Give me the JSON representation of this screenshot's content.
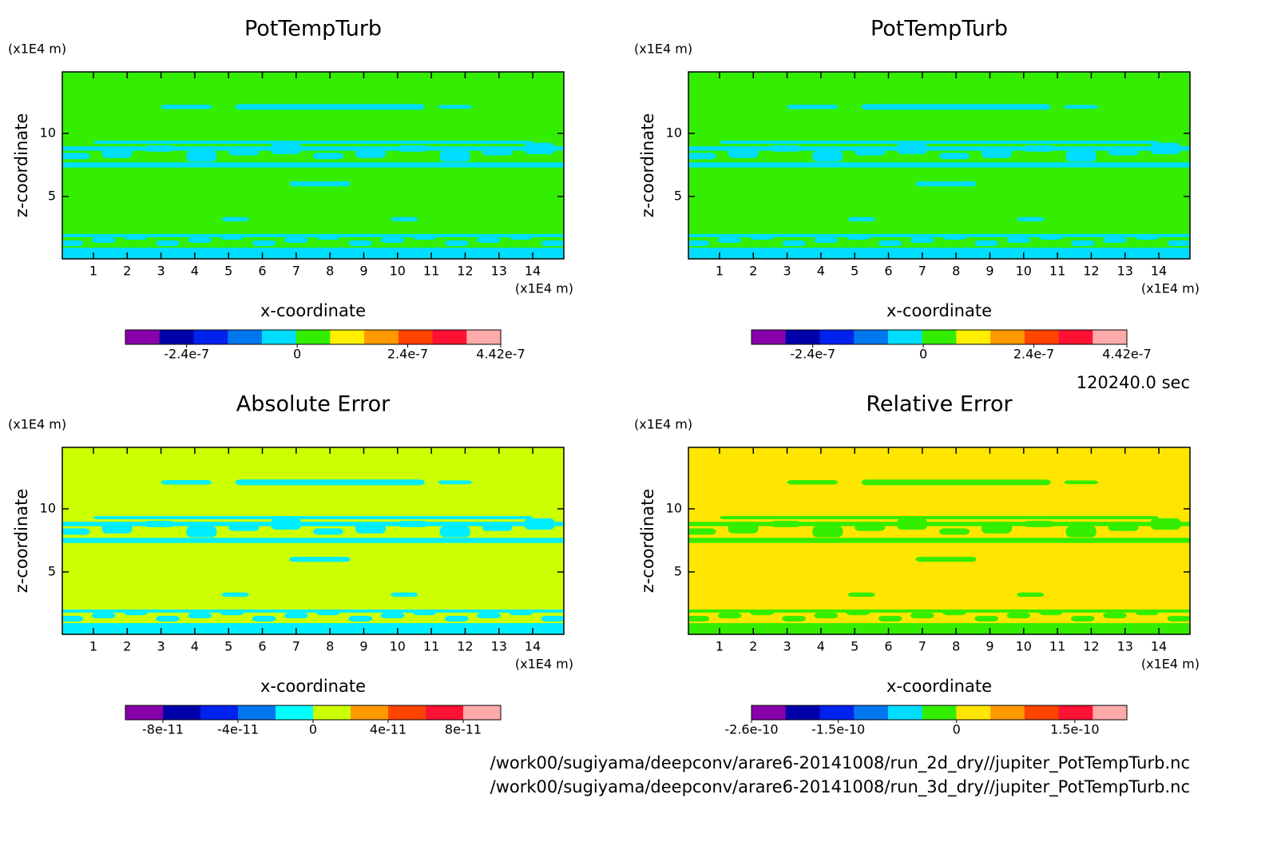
{
  "chart_data": [
    {
      "type": "contour",
      "title": "PotTempTurb",
      "xlabel": "x-coordinate",
      "ylabel": "z-coordinate",
      "x_unit": "(x1E4 m)",
      "y_unit": "(x1E4 m)",
      "xlim": [
        0.08,
        14.92
      ],
      "xticks": [
        1,
        2,
        3,
        4,
        5,
        6,
        7,
        8,
        9,
        10,
        11,
        12,
        13,
        14
      ],
      "ylim": [
        0.06,
        14.87
      ],
      "yticks": [
        5,
        10
      ],
      "background_color": "#33ee00",
      "feature_color": "#00ddff",
      "colorbar": {
        "clim": [
          -3.73e-07,
          4.42e-07
        ],
        "colors": [
          "#8800aa",
          "#0000aa",
          "#0022ee",
          "#0077ee",
          "#00ddff",
          "#33ee00",
          "#ffee00",
          "#ff9900",
          "#ff4400",
          "#ff1133",
          "#ffaaaa"
        ],
        "ticks": [
          -2.4e-07,
          0,
          2.4e-07,
          4.42e-07
        ]
      }
    },
    {
      "type": "contour",
      "title": "PotTempTurb",
      "xlabel": "x-coordinate",
      "ylabel": "z-coordinate",
      "x_unit": "(x1E4 m)",
      "y_unit": "(x1E4 m)",
      "xlim": [
        0.08,
        14.92
      ],
      "xticks": [
        1,
        2,
        3,
        4,
        5,
        6,
        7,
        8,
        9,
        10,
        11,
        12,
        13,
        14
      ],
      "ylim": [
        0.06,
        14.87
      ],
      "yticks": [
        5,
        10
      ],
      "background_color": "#33ee00",
      "feature_color": "#00ddff",
      "colorbar": {
        "clim": [
          -3.73e-07,
          4.42e-07
        ],
        "colors": [
          "#8800aa",
          "#0000aa",
          "#0022ee",
          "#0077ee",
          "#00ddff",
          "#33ee00",
          "#ffee00",
          "#ff9900",
          "#ff4400",
          "#ff1133",
          "#ffaaaa"
        ],
        "ticks": [
          -2.4e-07,
          0,
          2.4e-07,
          4.42e-07
        ]
      }
    },
    {
      "type": "contour",
      "title": "Absolute Error",
      "xlabel": "x-coordinate",
      "ylabel": "z-coordinate",
      "x_unit": "(x1E4 m)",
      "y_unit": "(x1E4 m)",
      "xlim": [
        0.08,
        14.92
      ],
      "xticks": [
        1,
        2,
        3,
        4,
        5,
        6,
        7,
        8,
        9,
        10,
        11,
        12,
        13,
        14
      ],
      "ylim": [
        0.06,
        14.87
      ],
      "yticks": [
        5,
        10
      ],
      "background_color": "#ccff00",
      "feature_color": "#00eeff",
      "colorbar": {
        "clim": [
          -1e-10,
          1e-10
        ],
        "colors": [
          "#8800aa",
          "#0000aa",
          "#0022ee",
          "#0077ee",
          "#00ffff",
          "#ccff00",
          "#ff9900",
          "#ff4400",
          "#ff1133",
          "#ffaaaa"
        ],
        "ticks": [
          -8e-11,
          -4e-11,
          0,
          4e-11,
          8e-11
        ]
      }
    },
    {
      "type": "contour",
      "title": "Relative Error",
      "xlabel": "x-coordinate",
      "ylabel": "z-coordinate",
      "x_unit": "(x1E4 m)",
      "y_unit": "(x1E4 m)",
      "xlim": [
        0.08,
        14.92
      ],
      "xticks": [
        1,
        2,
        3,
        4,
        5,
        6,
        7,
        8,
        9,
        10,
        11,
        12,
        13,
        14
      ],
      "ylim": [
        0.06,
        14.87
      ],
      "yticks": [
        5,
        10
      ],
      "background_color": "#ffe600",
      "feature_color": "#33ee00",
      "colorbar": {
        "clim": [
          -2.6e-10,
          2.16e-10
        ],
        "colors": [
          "#8800aa",
          "#0000aa",
          "#0022ee",
          "#0077ee",
          "#00ddff",
          "#33ee00",
          "#ffe600",
          "#ff9900",
          "#ff4400",
          "#ff1133",
          "#ffaaaa"
        ],
        "ticks": [
          -2.6e-10,
          -1.5e-10,
          0,
          1.5e-10
        ]
      }
    }
  ],
  "annotations": {
    "time": "120240.0 sec",
    "files": [
      "/work00/sugiyama/deepconv/arare6-20141008/run_2d_dry//jupiter_PotTempTurb.nc",
      "/work00/sugiyama/deepconv/arare6-20141008/run_3d_dry//jupiter_PotTempTurb.nc"
    ]
  }
}
